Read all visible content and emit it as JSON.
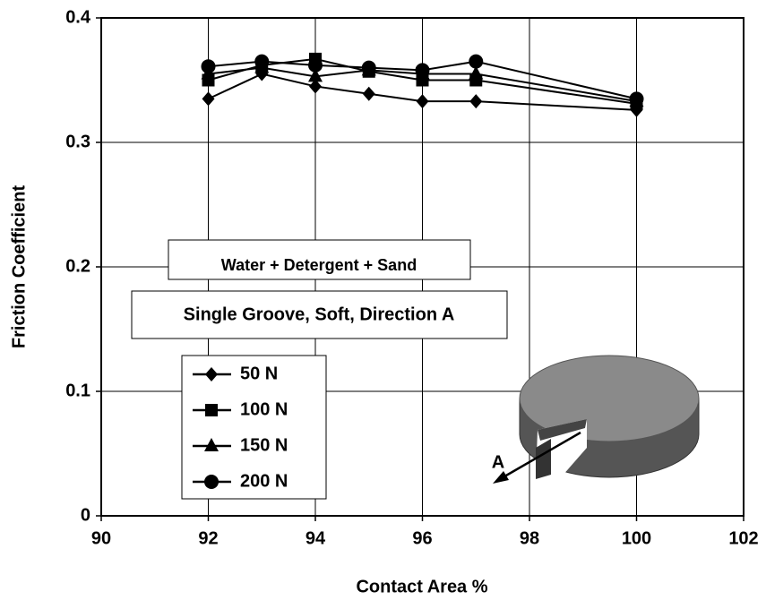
{
  "chart_data": {
    "type": "line",
    "x_label": "Contact Area %",
    "y_label": "Friction Coefficient",
    "annotations": [
      "Water + Detergent + Sand",
      "Single Groove, Soft, Direction A",
      "A"
    ],
    "x": [
      92,
      93,
      94,
      95,
      96,
      97,
      100
    ],
    "series": [
      {
        "name": "50 N",
        "color": "#000000",
        "marker": "diamond",
        "values": [
          0.335,
          0.355,
          0.345,
          0.339,
          0.333,
          0.333,
          0.326
        ]
      },
      {
        "name": "100 N",
        "color": "#000000",
        "marker": "square",
        "values": [
          0.35,
          0.362,
          0.367,
          0.357,
          0.35,
          0.35,
          0.331
        ]
      },
      {
        "name": "150 N",
        "color": "#000000",
        "marker": "triangle",
        "values": [
          0.355,
          0.36,
          0.353,
          0.358,
          0.355,
          0.355,
          0.333
        ]
      },
      {
        "name": "200 N",
        "color": "#000000",
        "marker": "circle",
        "values": [
          0.361,
          0.365,
          0.362,
          0.36,
          0.358,
          0.365,
          0.335
        ]
      }
    ],
    "xlim": [
      90,
      102
    ],
    "xticks": [
      90,
      92,
      94,
      96,
      98,
      100,
      102
    ],
    "ylim": [
      0,
      0.4
    ],
    "yticks": [
      0,
      0.1,
      0.2,
      0.3,
      0.4
    ],
    "grid": true,
    "legend": "lower left"
  }
}
